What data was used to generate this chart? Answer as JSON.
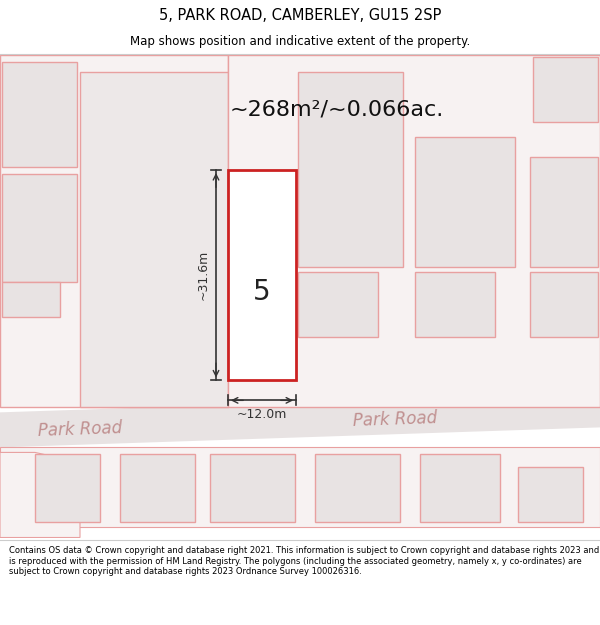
{
  "title_line1": "5, PARK ROAD, CAMBERLEY, GU15 2SP",
  "title_line2": "Map shows position and indicative extent of the property.",
  "area_text": "~268m²/~0.066ac.",
  "property_number": "5",
  "dim_width": "~12.0m",
  "dim_height": "~31.6m",
  "road_label_left": "Park Road",
  "road_label_right": "Park Road",
  "footer_text": "Contains OS data © Crown copyright and database right 2021. This information is subject to Crown copyright and database rights 2023 and is reproduced with the permission of HM Land Registry. The polygons (including the associated geometry, namely x, y co-ordinates) are subject to Crown copyright and database rights 2023 Ordnance Survey 100026316.",
  "bg_white": "#ffffff",
  "map_bg": "#f7f2f2",
  "road_fill": "#e8e3e3",
  "prop_outline": "#cc2222",
  "prop_fill": "#ffffff",
  "neigh_outline": "#e8a0a0",
  "neigh_fill": "#e8e3e3",
  "neigh_fill2": "#ede8e8",
  "dim_color": "#333333",
  "road_text_color": "#c09090",
  "area_text_color": "#111111"
}
